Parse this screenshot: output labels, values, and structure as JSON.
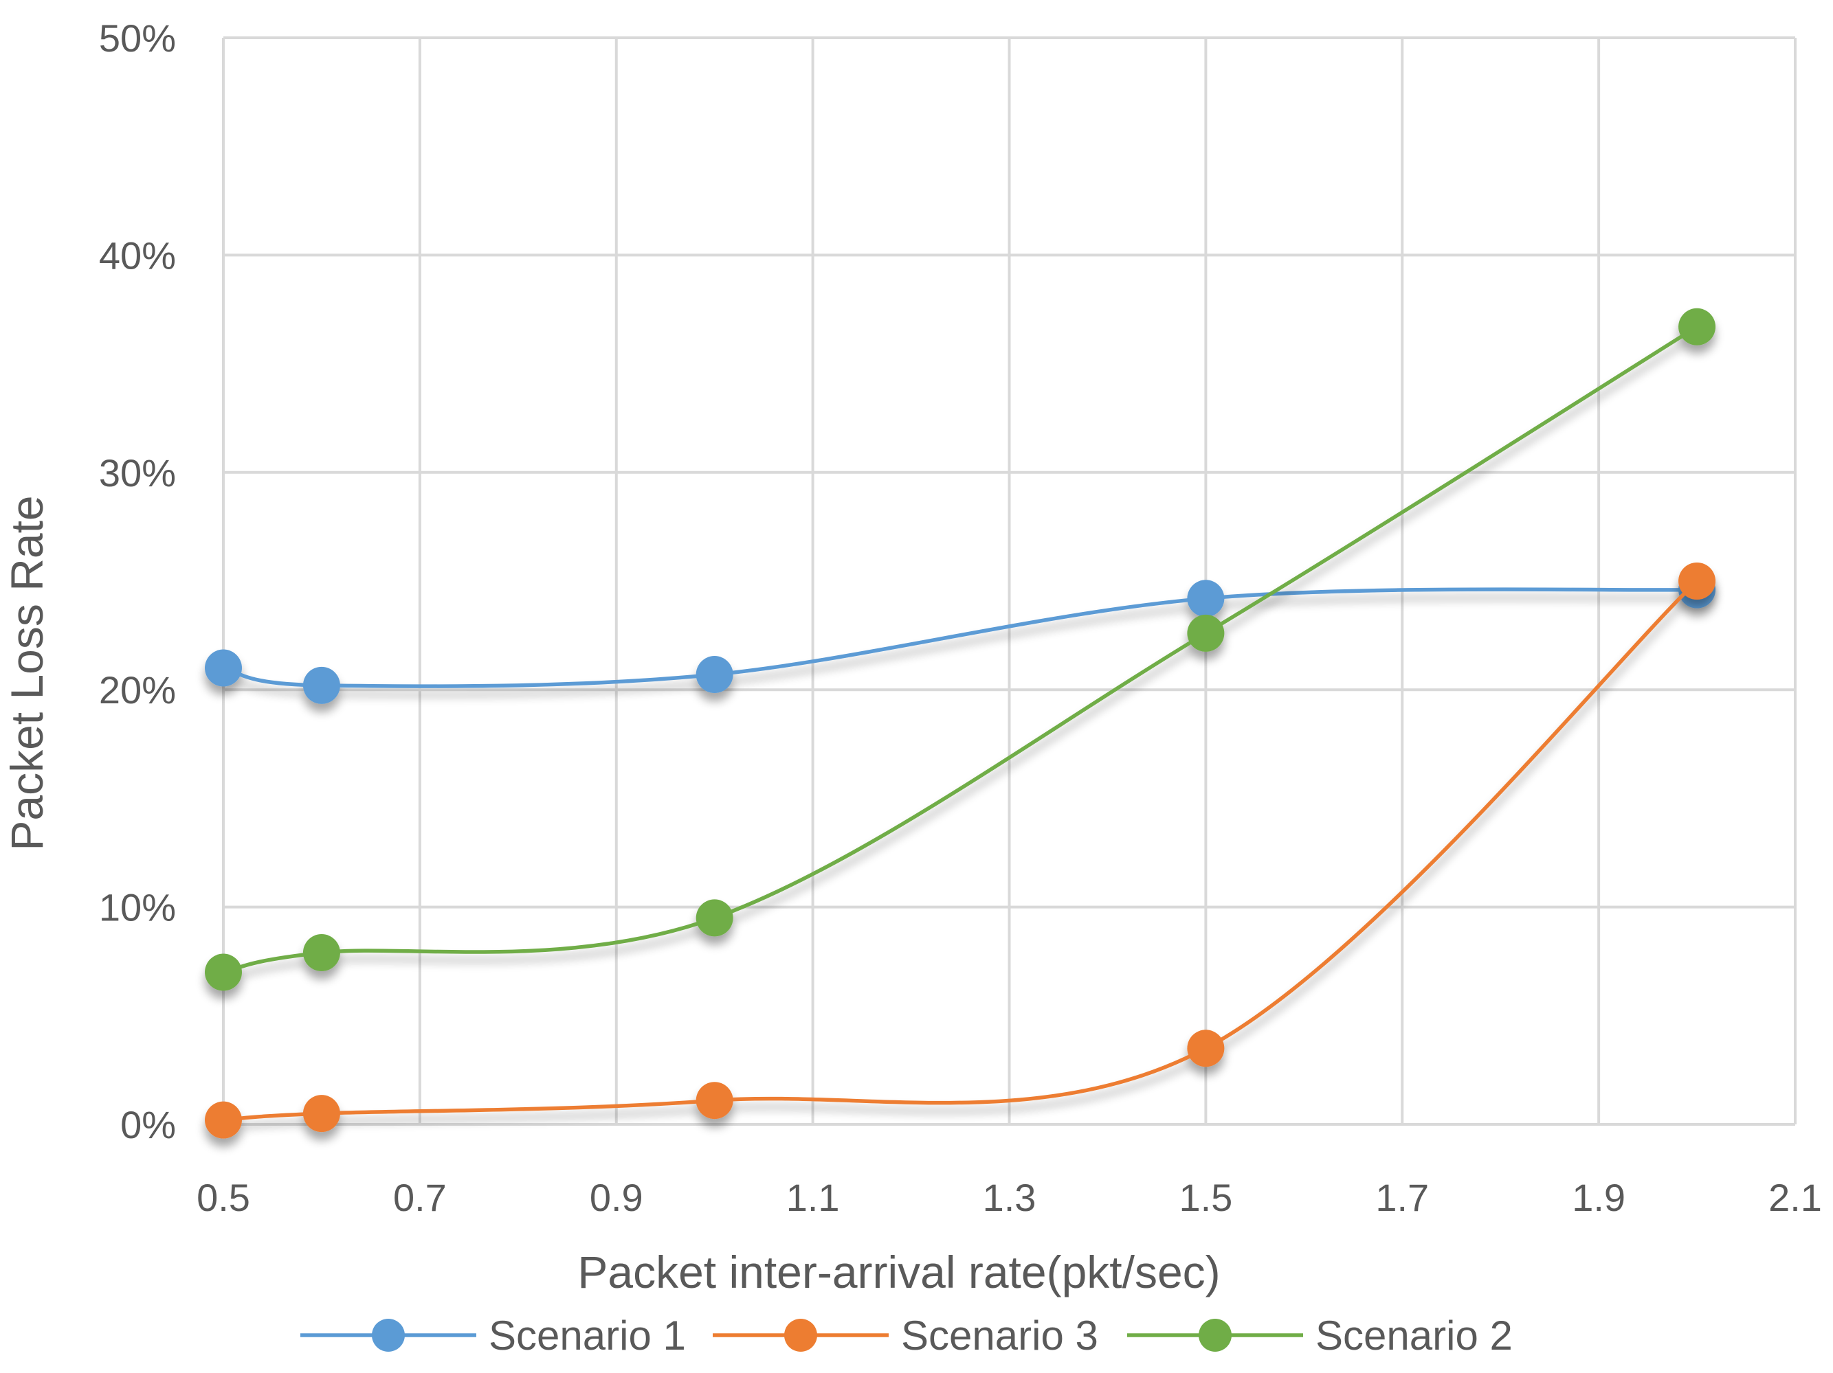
{
  "chart_data": {
    "type": "line",
    "xlabel": "Packet inter-arrival rate(pkt/sec)",
    "ylabel": "Packet Loss Rate",
    "xlim": [
      0.5,
      2.1
    ],
    "ylim": [
      0,
      50
    ],
    "x_ticks": [
      {
        "value": 0.5,
        "label": "0.5"
      },
      {
        "value": 0.7,
        "label": "0.7"
      },
      {
        "value": 0.9,
        "label": "0.9"
      },
      {
        "value": 1.1,
        "label": "1.1"
      },
      {
        "value": 1.3,
        "label": "1.3"
      },
      {
        "value": 1.5,
        "label": "1.5"
      },
      {
        "value": 1.7,
        "label": "1.7"
      },
      {
        "value": 1.9,
        "label": "1.9"
      },
      {
        "value": 2.1,
        "label": "2.1"
      }
    ],
    "y_ticks": [
      {
        "value": 0,
        "label": "0%"
      },
      {
        "value": 10,
        "label": "10%"
      },
      {
        "value": 20,
        "label": "20%"
      },
      {
        "value": 30,
        "label": "30%"
      },
      {
        "value": 40,
        "label": "40%"
      },
      {
        "value": 50,
        "label": "50%"
      }
    ],
    "grid": true,
    "smooth": true,
    "legend_position": "bottom",
    "series": [
      {
        "name": "Scenario 1",
        "color": "#5B9BD5",
        "x": [
          0.5,
          0.6,
          1.0,
          1.5,
          2.0
        ],
        "y": [
          21.0,
          20.2,
          20.7,
          24.2,
          24.6
        ]
      },
      {
        "name": "Scenario 3",
        "color": "#ED7D31",
        "x": [
          0.5,
          0.6,
          1.0,
          1.5,
          2.0
        ],
        "y": [
          0.2,
          0.5,
          1.1,
          3.5,
          25.0
        ]
      },
      {
        "name": "Scenario 2",
        "color": "#70AD47",
        "x": [
          0.5,
          0.6,
          1.0,
          1.5,
          2.0
        ],
        "y": [
          7.0,
          7.9,
          9.5,
          22.6,
          36.7
        ]
      }
    ]
  }
}
